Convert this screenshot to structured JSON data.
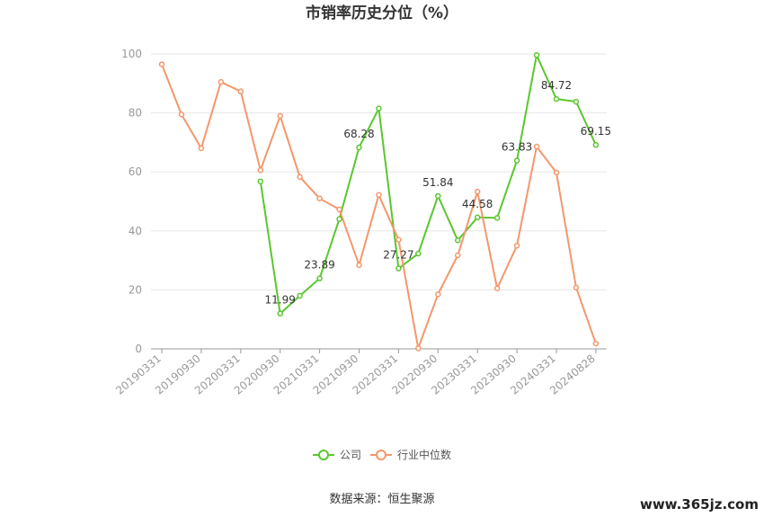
{
  "chart_data": {
    "type": "line",
    "title": "市销率历史分位（%）",
    "ylim": [
      0,
      100
    ],
    "yticks": [
      0,
      20,
      40,
      60,
      80,
      100
    ],
    "x_tick_labels": [
      "20190331",
      "20190930",
      "20200331",
      "20200930",
      "20210331",
      "20210930",
      "20220331",
      "20220930",
      "20230331",
      "20230930",
      "20240331",
      "20240828"
    ],
    "n_points": 23,
    "series": [
      {
        "name": "公司",
        "color": "#5ac72f",
        "values": [
          null,
          null,
          null,
          null,
          null,
          56.8,
          11.99,
          18.0,
          23.89,
          44.0,
          68.28,
          81.5,
          27.27,
          32.3,
          51.84,
          36.8,
          44.58,
          44.4,
          63.83,
          99.6,
          84.72,
          83.8,
          69.15
        ],
        "labels": [
          null,
          null,
          null,
          null,
          null,
          null,
          "11.99",
          null,
          "23.89",
          null,
          "68.28",
          null,
          "27.27",
          null,
          "51.84",
          null,
          "44.58",
          null,
          "63.83",
          null,
          "84.72",
          null,
          "69.15"
        ]
      },
      {
        "name": "行业中位数",
        "color": "#f4976c",
        "values": [
          96.5,
          79.5,
          68.0,
          90.5,
          87.3,
          60.6,
          79.0,
          58.3,
          51.0,
          47.3,
          28.4,
          52.2,
          37.0,
          0.2,
          18.5,
          31.7,
          53.3,
          20.5,
          35.0,
          68.6,
          59.8,
          20.8,
          1.8
        ]
      }
    ],
    "legend_position": "bottom",
    "grid": true
  },
  "footer": {
    "source": "数据来源：恒生聚源",
    "watermark": "www.365jz.com"
  }
}
